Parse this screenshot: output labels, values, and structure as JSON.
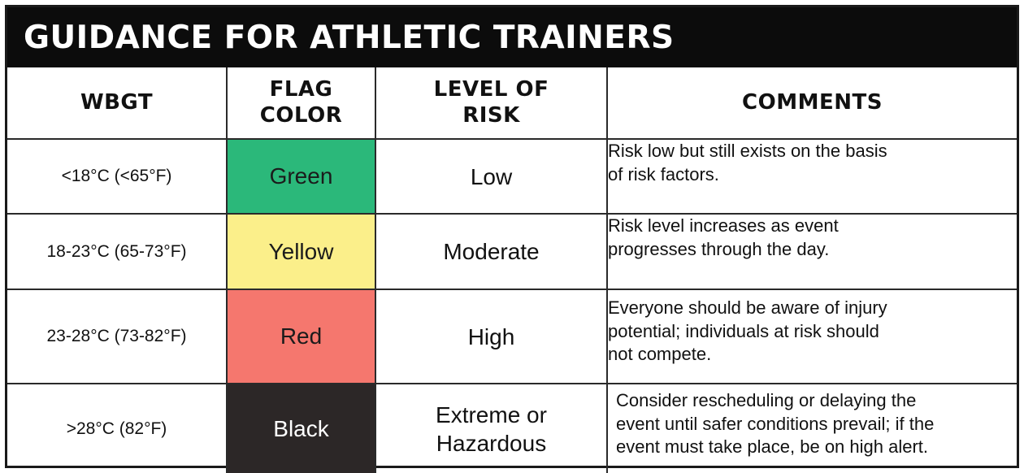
{
  "title": "GUIDANCE FOR ATHLETIC TRAINERS",
  "headers": {
    "wbgt": [
      "WBGT"
    ],
    "flag_color": [
      "FLAG",
      "COLOR"
    ],
    "level_of_risk": [
      "LEVEL OF",
      "RISK"
    ],
    "comments": [
      "COMMENTS"
    ]
  },
  "rows": [
    {
      "wbgt": "<18°C (<65°F)",
      "flag_color": "Green",
      "flag_hex": "#2bb87a",
      "risk": [
        "Low"
      ],
      "comments": [
        "Risk low but still exists on the basis",
        "of risk factors."
      ]
    },
    {
      "wbgt": "18-23°C (65-73°F)",
      "flag_color": "Yellow",
      "flag_hex": "#fbef8a",
      "risk": [
        "Moderate"
      ],
      "comments": [
        "Risk level increases as event",
        "progresses through the day."
      ]
    },
    {
      "wbgt": "23-28°C (73-82°F)",
      "flag_color": "Red",
      "flag_hex": "#f5776e",
      "risk": [
        "High"
      ],
      "comments": [
        "Everyone should be aware of injury",
        "potential; individuals at risk should",
        "not compete."
      ]
    },
    {
      "wbgt": ">28°C (82°F)",
      "flag_color": "Black",
      "flag_hex": "#2c2727",
      "risk": [
        "Extreme or",
        "Hazardous"
      ],
      "comments": [
        "Consider rescheduling or delaying the",
        "event until safer conditions prevail; if the",
        "event must take place, be on high alert."
      ]
    }
  ]
}
